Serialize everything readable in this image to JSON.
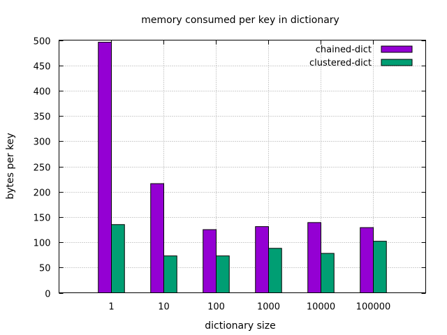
{
  "chart_data": {
    "type": "bar",
    "title": "memory consumed per key in dictionary",
    "xlabel": "dictionary size",
    "ylabel": "bytes per key",
    "categories": [
      "1",
      "10",
      "100",
      "1000",
      "10000",
      "100000"
    ],
    "series": [
      {
        "name": "chained-dict",
        "color": "#9400d3",
        "values": [
          496,
          216,
          125,
          131,
          139,
          129
        ]
      },
      {
        "name": "clustered-dict",
        "color": "#009e73",
        "values": [
          135,
          73,
          73,
          88,
          78,
          102
        ]
      }
    ],
    "ylim": [
      0,
      500
    ],
    "yticks": [
      0,
      50,
      100,
      150,
      200,
      250,
      300,
      350,
      400,
      450,
      500
    ],
    "grid": true,
    "legend_position": "top-right"
  }
}
